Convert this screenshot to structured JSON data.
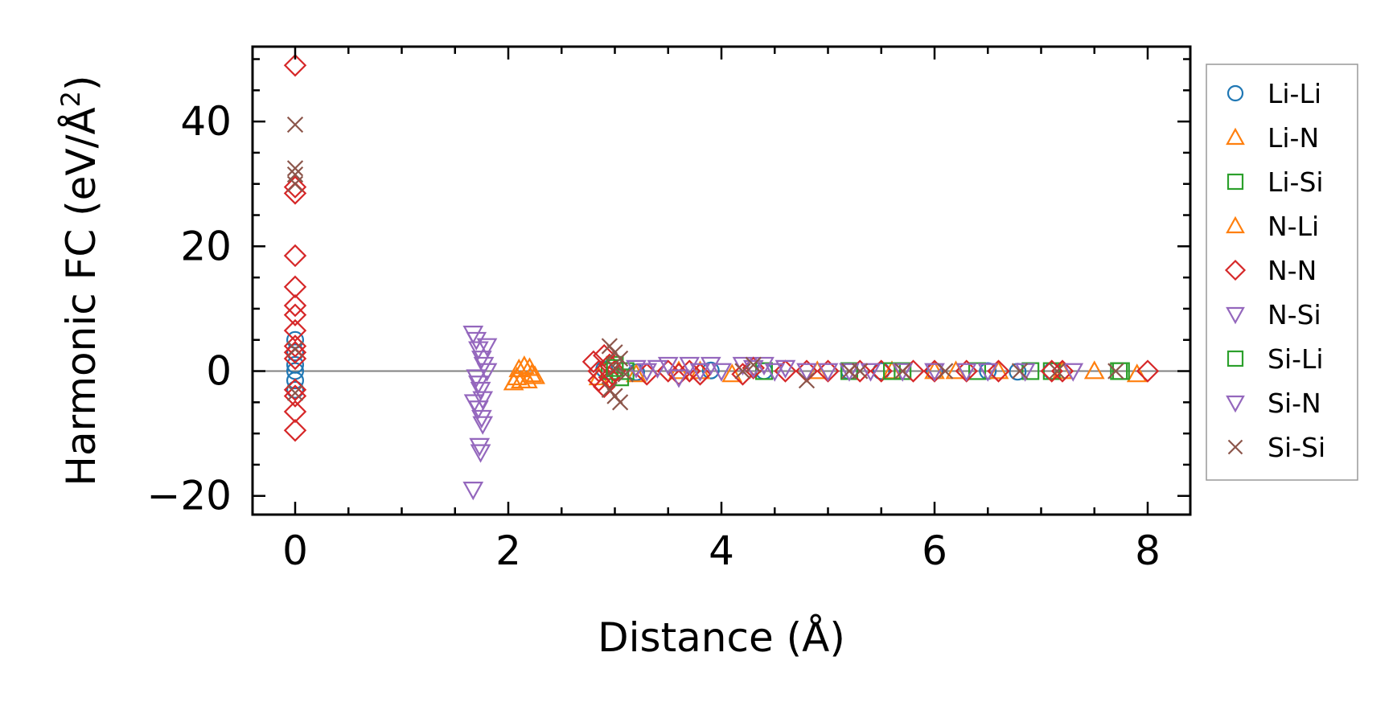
{
  "chart_data": {
    "type": "scatter",
    "xlabel": "Distance (Å)",
    "ylabel": "Harmonic FC (eV/Å²)",
    "ylabel_main": "Harmonic FC (eV/Å",
    "ylabel_sup": "2",
    "ylabel_close": ")",
    "xlim": [
      -0.4,
      8.4
    ],
    "ylim": [
      -23,
      52
    ],
    "xticks": [
      0,
      2,
      4,
      6,
      8
    ],
    "xtick_labels": [
      "0",
      "2",
      "4",
      "6",
      "8"
    ],
    "yticks": [
      -20,
      0,
      20,
      40
    ],
    "ytick_labels": [
      "−20",
      "0",
      "20",
      "40"
    ],
    "legend_position": "right",
    "zero_line": true,
    "series": [
      {
        "name": "Li-Li",
        "marker": "circle",
        "color": "#1f77b4",
        "points": [
          [
            0,
            5
          ],
          [
            0,
            3
          ],
          [
            0,
            1
          ],
          [
            0,
            0
          ],
          [
            0,
            -1.5
          ],
          [
            0,
            -3
          ],
          [
            2.9,
            0.3
          ],
          [
            3.2,
            -0.2
          ],
          [
            3.9,
            0.1
          ],
          [
            4.4,
            0
          ],
          [
            5.2,
            0
          ],
          [
            5.5,
            0
          ],
          [
            6.0,
            0
          ],
          [
            6.5,
            0
          ],
          [
            6.78,
            -0.1
          ],
          [
            7.1,
            0
          ]
        ]
      },
      {
        "name": "Li-N",
        "marker": "triangle-up",
        "color": "#ff7f0e",
        "points": [
          [
            2.05,
            -1.8
          ],
          [
            2.08,
            -1
          ],
          [
            2.1,
            0.3
          ],
          [
            2.12,
            -1.5
          ],
          [
            2.15,
            0.8
          ],
          [
            2.2,
            0.5
          ],
          [
            2.25,
            -0.8
          ],
          [
            2.85,
            -1
          ],
          [
            3.2,
            -0.5
          ],
          [
            3.6,
            0
          ],
          [
            4.1,
            -0.5
          ],
          [
            4.9,
            0
          ],
          [
            5.6,
            0
          ],
          [
            6.2,
            0
          ],
          [
            6.6,
            0
          ],
          [
            7.2,
            0
          ],
          [
            7.9,
            -0.5
          ]
        ]
      },
      {
        "name": "Li-Si",
        "marker": "square",
        "color": "#2ca02c",
        "points": [
          [
            2.95,
            0
          ],
          [
            3.0,
            1
          ],
          [
            3.05,
            -1
          ],
          [
            3.1,
            0
          ],
          [
            4.4,
            0
          ],
          [
            5.2,
            0
          ],
          [
            5.7,
            0
          ],
          [
            6.4,
            0
          ],
          [
            7.1,
            0
          ],
          [
            7.73,
            0
          ]
        ]
      },
      {
        "name": "N-Li",
        "marker": "triangle-up",
        "color": "#ff7f0e",
        "points": [
          [
            2.18,
            -1.5
          ],
          [
            2.22,
            -0.5
          ],
          [
            3.8,
            0
          ],
          [
            6.0,
            0
          ],
          [
            7.5,
            0
          ]
        ]
      },
      {
        "name": "N-N",
        "marker": "diamond",
        "color": "#d62728",
        "points": [
          [
            0,
            49
          ],
          [
            0,
            29.5
          ],
          [
            0,
            28.5
          ],
          [
            0,
            18.5
          ],
          [
            0,
            13.5
          ],
          [
            0,
            10.5
          ],
          [
            0,
            9
          ],
          [
            0,
            6.5
          ],
          [
            0,
            4
          ],
          [
            0,
            3
          ],
          [
            0,
            2
          ],
          [
            0,
            -3
          ],
          [
            0,
            -4
          ],
          [
            0,
            -6.5
          ],
          [
            0,
            -9.5
          ],
          [
            2.8,
            1.5
          ],
          [
            2.85,
            0
          ],
          [
            2.85,
            -1.5
          ],
          [
            2.9,
            2.5
          ],
          [
            2.9,
            -2.5
          ],
          [
            2.95,
            1
          ],
          [
            2.95,
            -1
          ],
          [
            3.0,
            0
          ],
          [
            3.3,
            -0.5
          ],
          [
            3.5,
            0
          ],
          [
            3.6,
            -0.5
          ],
          [
            3.7,
            0
          ],
          [
            3.8,
            -0.5
          ],
          [
            4.2,
            -0.5
          ],
          [
            4.3,
            0.5
          ],
          [
            4.6,
            0
          ],
          [
            4.8,
            0
          ],
          [
            5.0,
            0
          ],
          [
            5.3,
            0
          ],
          [
            5.5,
            0
          ],
          [
            5.8,
            0
          ],
          [
            6.0,
            0
          ],
          [
            6.3,
            0
          ],
          [
            6.6,
            0
          ],
          [
            7.1,
            0
          ],
          [
            7.2,
            0
          ],
          [
            8.0,
            0
          ]
        ]
      },
      {
        "name": "N-Si",
        "marker": "triangle-down",
        "color": "#9467bd",
        "points": [
          [
            1.67,
            6
          ],
          [
            1.7,
            5
          ],
          [
            1.72,
            3.5
          ],
          [
            1.75,
            2
          ],
          [
            1.77,
            1
          ],
          [
            1.7,
            -1
          ],
          [
            1.72,
            -2
          ],
          [
            1.74,
            -3
          ],
          [
            1.68,
            -5
          ],
          [
            1.72,
            -6
          ],
          [
            1.75,
            -7.5
          ],
          [
            1.76,
            -8.5
          ],
          [
            1.73,
            -12
          ],
          [
            1.74,
            -13
          ],
          [
            1.67,
            -19
          ],
          [
            1.8,
            0
          ],
          [
            1.8,
            4
          ],
          [
            1.76,
            -4.5
          ]
        ]
      },
      {
        "name": "Si-Li",
        "marker": "square",
        "color": "#2ca02c",
        "points": [
          [
            3.0,
            0.5
          ],
          [
            5.6,
            0
          ],
          [
            6.9,
            0
          ],
          [
            7.75,
            0
          ]
        ]
      },
      {
        "name": "Si-N",
        "marker": "triangle-down",
        "color": "#9467bd",
        "points": [
          [
            3.2,
            0.5
          ],
          [
            3.3,
            0
          ],
          [
            3.4,
            0.5
          ],
          [
            3.5,
            1
          ],
          [
            3.6,
            -1
          ],
          [
            3.7,
            1
          ],
          [
            3.8,
            0
          ],
          [
            3.9,
            1
          ],
          [
            4.0,
            0
          ],
          [
            4.2,
            1
          ],
          [
            4.3,
            0.5
          ],
          [
            4.4,
            1
          ],
          [
            4.5,
            0
          ],
          [
            4.6,
            0.5
          ],
          [
            4.8,
            0
          ],
          [
            5.0,
            0
          ],
          [
            5.2,
            0
          ],
          [
            5.4,
            0
          ],
          [
            5.7,
            0
          ],
          [
            6.0,
            0
          ],
          [
            6.3,
            0
          ],
          [
            6.5,
            0
          ],
          [
            6.85,
            0
          ],
          [
            7.3,
            0
          ]
        ]
      },
      {
        "name": "Si-Si",
        "marker": "x",
        "color": "#8c564b",
        "points": [
          [
            0,
            39.5
          ],
          [
            0,
            32.5
          ],
          [
            0,
            31.5
          ],
          [
            0,
            30
          ],
          [
            0,
            3.5
          ],
          [
            0,
            -3.5
          ],
          [
            2.95,
            4
          ],
          [
            3.0,
            3
          ],
          [
            3.05,
            2
          ],
          [
            2.95,
            -3
          ],
          [
            3.0,
            -4
          ],
          [
            3.05,
            -5
          ],
          [
            3.0,
            0.5
          ],
          [
            3.1,
            -0.5
          ],
          [
            4.2,
            0
          ],
          [
            4.3,
            1
          ],
          [
            4.8,
            -1.5
          ],
          [
            5.2,
            0
          ],
          [
            5.3,
            0
          ],
          [
            5.7,
            0
          ],
          [
            6.1,
            0
          ],
          [
            6.8,
            0
          ],
          [
            7.15,
            0
          ],
          [
            7.7,
            0
          ]
        ]
      }
    ]
  }
}
